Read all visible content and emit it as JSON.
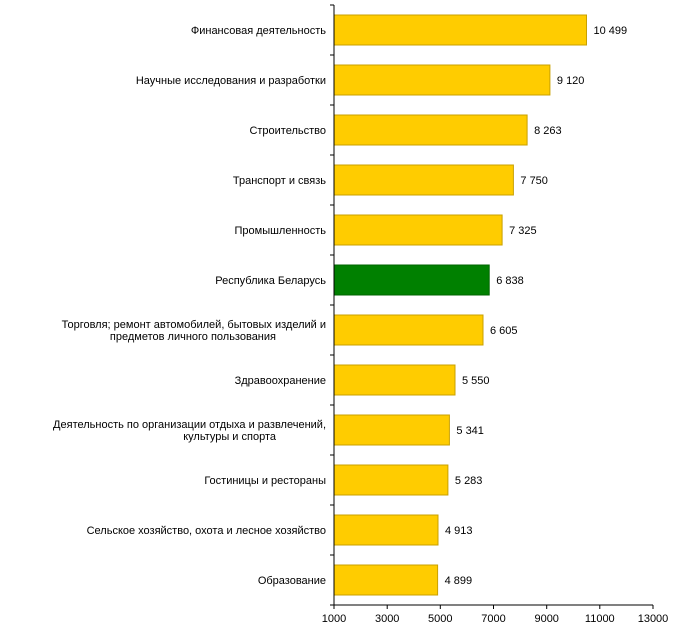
{
  "chart_data": {
    "type": "bar",
    "orientation": "horizontal",
    "categories": [
      [
        "Финансовая деятельность"
      ],
      [
        "Научные исследования и разработки"
      ],
      [
        "Строительство"
      ],
      [
        "Транспорт и связь"
      ],
      [
        "Промышленность"
      ],
      [
        "Республика Беларусь"
      ],
      [
        "Торговля; ремонт автомобилей, бытовых изделий и",
        "предметов личного пользования"
      ],
      [
        "Здравоохранение"
      ],
      [
        "Деятельность по организации отдыха и развлечений,",
        "культуры и спорта"
      ],
      [
        "Гостиницы и рестораны"
      ],
      [
        "Сельское хозяйство, охота и лесное хозяйство"
      ],
      [
        "Образование"
      ]
    ],
    "values": [
      10499,
      9120,
      8263,
      7750,
      7325,
      6838,
      6605,
      5550,
      5341,
      5283,
      4913,
      4899
    ],
    "value_labels": [
      "10 499",
      "9 120",
      "8 263",
      "7 750",
      "7 325",
      "6 838",
      "6 605",
      "5 550",
      "5 341",
      "5 283",
      "4 913",
      "4 899"
    ],
    "highlight_index": 5,
    "xlim": [
      1000,
      13000
    ],
    "xticks": [
      1000,
      3000,
      5000,
      7000,
      9000,
      11000,
      13000
    ],
    "xtick_labels": [
      "1000",
      "3000",
      "5000",
      "7000",
      "9000",
      "11000",
      "13000"
    ],
    "title": "",
    "xlabel": "",
    "ylabel": "",
    "grid": false,
    "legend": "none",
    "colors": {
      "bar": "#FFCC00",
      "bar_border": "#C8A000",
      "highlight": "#008000",
      "highlight_border": "#006400",
      "axis": "#000000"
    }
  }
}
